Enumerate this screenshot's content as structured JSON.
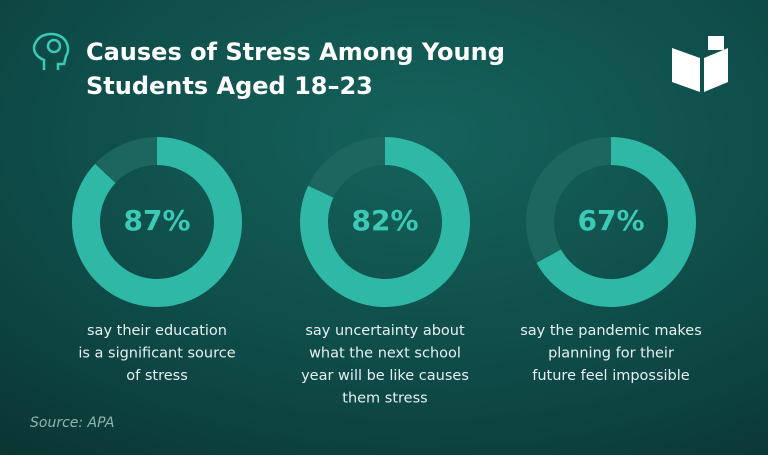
{
  "title": [
    "Causes of Stress Among Young",
    "Students Aged 18–23"
  ],
  "source": "Source: APA",
  "chart_data": [
    {
      "type": "donut",
      "values": [
        87
      ],
      "value_labels": [
        "87%"
      ],
      "color": "#2fb8a6",
      "track_color": "#1d6660",
      "caption": [
        "say their education",
        "is a significant source",
        "of stress"
      ]
    },
    {
      "type": "donut",
      "values": [
        82
      ],
      "value_labels": [
        "82%"
      ],
      "color": "#2fb8a6",
      "track_color": "#1d6660",
      "caption": [
        "say uncertainty about",
        "what the next school",
        "year will be like causes",
        "them stress"
      ]
    },
    {
      "type": "donut",
      "values": [
        67
      ],
      "value_labels": [
        "67%"
      ],
      "color": "#2fb8a6",
      "track_color": "#1d6660",
      "caption": [
        "say the pandemic makes",
        "planning for their",
        "future feel impossible"
      ]
    }
  ]
}
